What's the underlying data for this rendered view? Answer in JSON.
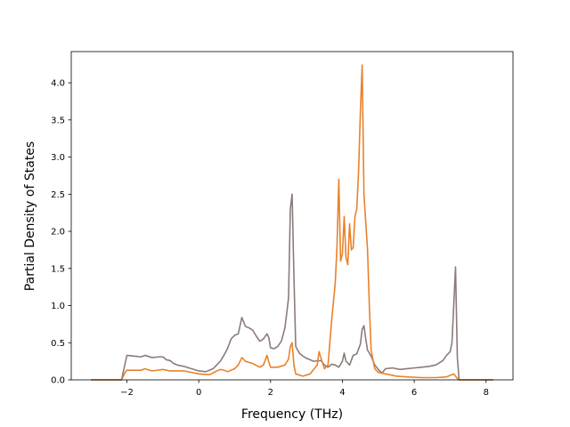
{
  "chart_data": {
    "type": "line",
    "title": "",
    "xlabel": "Frequency (THz)",
    "ylabel": "Partial Density of States",
    "xlim": [
      -3.55,
      8.75
    ],
    "ylim": [
      0,
      4.42
    ],
    "xticks": [
      -2,
      0,
      2,
      4,
      6,
      8
    ],
    "xtick_labels": [
      "−2",
      "0",
      "2",
      "4",
      "6",
      "8"
    ],
    "yticks": [
      0.0,
      0.5,
      1.0,
      1.5,
      2.0,
      2.5,
      3.0,
      3.5,
      4.0
    ],
    "ytick_labels": [
      "0.0",
      "0.5",
      "1.0",
      "1.5",
      "2.0",
      "2.5",
      "3.0",
      "3.5",
      "4.0"
    ],
    "grid": false,
    "legend": "none",
    "series": [
      {
        "color": "#8c7b7a",
        "points": [
          [
            -3.0,
            0.0
          ],
          [
            -2.15,
            0.0
          ],
          [
            -2.05,
            0.22
          ],
          [
            -2.0,
            0.33
          ],
          [
            -1.8,
            0.32
          ],
          [
            -1.6,
            0.31
          ],
          [
            -1.5,
            0.33
          ],
          [
            -1.3,
            0.3
          ],
          [
            -1.1,
            0.31
          ],
          [
            -1.0,
            0.31
          ],
          [
            -0.9,
            0.27
          ],
          [
            -0.8,
            0.26
          ],
          [
            -0.7,
            0.22
          ],
          [
            -0.6,
            0.2
          ],
          [
            -0.4,
            0.18
          ],
          [
            -0.2,
            0.15
          ],
          [
            0.0,
            0.12
          ],
          [
            0.2,
            0.11
          ],
          [
            0.3,
            0.13
          ],
          [
            0.4,
            0.15
          ],
          [
            0.5,
            0.2
          ],
          [
            0.6,
            0.25
          ],
          [
            0.7,
            0.33
          ],
          [
            0.8,
            0.42
          ],
          [
            0.9,
            0.55
          ],
          [
            1.0,
            0.6
          ],
          [
            1.1,
            0.62
          ],
          [
            1.15,
            0.73
          ],
          [
            1.2,
            0.84
          ],
          [
            1.3,
            0.72
          ],
          [
            1.4,
            0.7
          ],
          [
            1.5,
            0.67
          ],
          [
            1.6,
            0.59
          ],
          [
            1.7,
            0.52
          ],
          [
            1.8,
            0.55
          ],
          [
            1.9,
            0.62
          ],
          [
            1.95,
            0.57
          ],
          [
            2.0,
            0.43
          ],
          [
            2.1,
            0.42
          ],
          [
            2.2,
            0.45
          ],
          [
            2.3,
            0.52
          ],
          [
            2.4,
            0.7
          ],
          [
            2.5,
            1.1
          ],
          [
            2.55,
            2.3
          ],
          [
            2.6,
            2.5
          ],
          [
            2.65,
            1.4
          ],
          [
            2.7,
            0.45
          ],
          [
            2.8,
            0.36
          ],
          [
            2.9,
            0.32
          ],
          [
            3.0,
            0.29
          ],
          [
            3.2,
            0.25
          ],
          [
            3.4,
            0.26
          ],
          [
            3.5,
            0.2
          ],
          [
            3.6,
            0.17
          ],
          [
            3.7,
            0.21
          ],
          [
            3.8,
            0.2
          ],
          [
            3.9,
            0.17
          ],
          [
            4.0,
            0.25
          ],
          [
            4.05,
            0.36
          ],
          [
            4.1,
            0.25
          ],
          [
            4.2,
            0.2
          ],
          [
            4.3,
            0.33
          ],
          [
            4.4,
            0.35
          ],
          [
            4.5,
            0.48
          ],
          [
            4.55,
            0.68
          ],
          [
            4.6,
            0.73
          ],
          [
            4.65,
            0.55
          ],
          [
            4.7,
            0.4
          ],
          [
            4.8,
            0.32
          ],
          [
            4.9,
            0.2
          ],
          [
            5.0,
            0.14
          ],
          [
            5.1,
            0.09
          ],
          [
            5.2,
            0.15
          ],
          [
            5.4,
            0.16
          ],
          [
            5.6,
            0.14
          ],
          [
            5.8,
            0.15
          ],
          [
            6.0,
            0.16
          ],
          [
            6.2,
            0.17
          ],
          [
            6.4,
            0.18
          ],
          [
            6.6,
            0.2
          ],
          [
            6.8,
            0.26
          ],
          [
            6.9,
            0.33
          ],
          [
            7.0,
            0.38
          ],
          [
            7.05,
            0.5
          ],
          [
            7.1,
            1.0
          ],
          [
            7.15,
            1.52
          ],
          [
            7.2,
            0.3
          ],
          [
            7.25,
            0.0
          ],
          [
            8.2,
            0.0
          ]
        ]
      },
      {
        "color": "#e8822a",
        "points": [
          [
            -3.0,
            0.0
          ],
          [
            -2.15,
            0.0
          ],
          [
            -2.05,
            0.1
          ],
          [
            -2.0,
            0.13
          ],
          [
            -1.6,
            0.13
          ],
          [
            -1.5,
            0.15
          ],
          [
            -1.3,
            0.12
          ],
          [
            -1.0,
            0.14
          ],
          [
            -0.8,
            0.12
          ],
          [
            -0.4,
            0.12
          ],
          [
            0.0,
            0.08
          ],
          [
            0.3,
            0.07
          ],
          [
            0.5,
            0.12
          ],
          [
            0.6,
            0.14
          ],
          [
            0.7,
            0.13
          ],
          [
            0.8,
            0.11
          ],
          [
            1.0,
            0.15
          ],
          [
            1.1,
            0.2
          ],
          [
            1.2,
            0.3
          ],
          [
            1.3,
            0.25
          ],
          [
            1.5,
            0.22
          ],
          [
            1.7,
            0.17
          ],
          [
            1.8,
            0.2
          ],
          [
            1.9,
            0.33
          ],
          [
            1.95,
            0.24
          ],
          [
            2.0,
            0.17
          ],
          [
            2.2,
            0.17
          ],
          [
            2.4,
            0.2
          ],
          [
            2.5,
            0.28
          ],
          [
            2.55,
            0.45
          ],
          [
            2.6,
            0.5
          ],
          [
            2.65,
            0.2
          ],
          [
            2.7,
            0.08
          ],
          [
            2.9,
            0.05
          ],
          [
            3.1,
            0.08
          ],
          [
            3.3,
            0.2
          ],
          [
            3.35,
            0.38
          ],
          [
            3.4,
            0.3
          ],
          [
            3.5,
            0.15
          ],
          [
            3.6,
            0.2
          ],
          [
            3.7,
            0.8
          ],
          [
            3.8,
            1.3
          ],
          [
            3.85,
            1.8
          ],
          [
            3.9,
            2.7
          ],
          [
            3.95,
            1.6
          ],
          [
            4.0,
            1.7
          ],
          [
            4.05,
            2.2
          ],
          [
            4.1,
            1.65
          ],
          [
            4.15,
            1.55
          ],
          [
            4.2,
            2.1
          ],
          [
            4.25,
            1.75
          ],
          [
            4.3,
            1.78
          ],
          [
            4.35,
            2.2
          ],
          [
            4.4,
            2.3
          ],
          [
            4.45,
            2.8
          ],
          [
            4.5,
            3.6
          ],
          [
            4.55,
            4.24
          ],
          [
            4.6,
            2.5
          ],
          [
            4.7,
            1.75
          ],
          [
            4.75,
            1.0
          ],
          [
            4.8,
            0.4
          ],
          [
            4.9,
            0.15
          ],
          [
            5.0,
            0.1
          ],
          [
            5.2,
            0.08
          ],
          [
            5.5,
            0.05
          ],
          [
            5.8,
            0.04
          ],
          [
            6.2,
            0.03
          ],
          [
            6.6,
            0.03
          ],
          [
            6.9,
            0.04
          ],
          [
            7.0,
            0.06
          ],
          [
            7.1,
            0.08
          ],
          [
            7.2,
            0.02
          ],
          [
            7.25,
            0.0
          ],
          [
            8.2,
            0.0
          ]
        ]
      }
    ]
  }
}
